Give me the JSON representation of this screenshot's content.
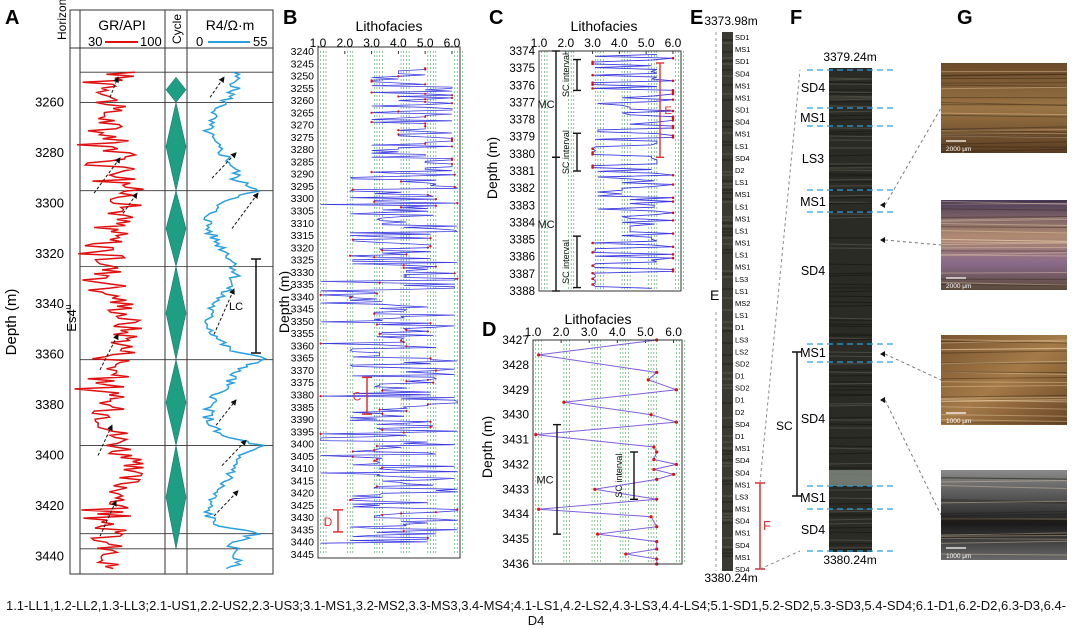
{
  "panel_letters": [
    "A",
    "B",
    "C",
    "D",
    "E",
    "F",
    "G"
  ],
  "caption": "1.1-LL1,1.2-LL2,1.3-LL3;2.1-US1,2.2-US2,2.3-US3;3.1-MS1,3.2-MS2,3.3-MS3,3.4-MS4;4.1-LS1,4.2-LS2,4.3-LS3,4.4-LS4;5.1-SD1,5.2-SD2,5.3-SD3,5.4-SD4;6.1-D1,6.2-D2,6.3-D3,6.4-D4",
  "colors": {
    "gr": "#e01010",
    "r4": "#2aa0e0",
    "cycle": "#1e9e82",
    "lith": "#3a3ae0",
    "lith_dot": "#e01010",
    "bracket_red": "#e03030",
    "guide": "#1a8a3a"
  },
  "chart_data": [
    {
      "id": "A",
      "type": "line",
      "ylabel": "Depth (m)",
      "ylim": [
        3240,
        3445
      ],
      "yticks": [
        3260,
        3280,
        3300,
        3320,
        3340,
        3360,
        3380,
        3400,
        3420,
        3440
      ],
      "headers": {
        "horizon": "Horizon",
        "gr": "GR/API",
        "cycle": "Cycle",
        "r4": "R4/Ω·m"
      },
      "gr_range_labels": [
        "30",
        "100"
      ],
      "r4_range_labels": [
        "0",
        "55"
      ],
      "horizon_label": "Es4",
      "horizon_sup": "u",
      "boundaries": [
        3248,
        3260,
        3295,
        3325,
        3362,
        3396,
        3431,
        3437
      ],
      "cycle_tips": [
        3250,
        3260,
        3295,
        3325,
        3362,
        3396,
        3437
      ],
      "lc_label": "LC",
      "lc_range": [
        3325,
        3362
      ]
    },
    {
      "id": "B",
      "type": "line",
      "title": "Lithofacies",
      "ylabel": "Depth (m)",
      "xlim": [
        1.0,
        6.3
      ],
      "xticks": [
        "1.0",
        "2.0",
        "3.0",
        "4.0",
        "5.0",
        "6.0"
      ],
      "ylim": [
        3240,
        3445
      ],
      "yticks": [
        "3240",
        "3245",
        "3250",
        "3255",
        "3260",
        "3265",
        "3270",
        "3275",
        "3280",
        "3285",
        "3290",
        "3295",
        "3300",
        "3305",
        "3310",
        "3315",
        "3320",
        "3325",
        "3330",
        "3335",
        "3340",
        "3345",
        "3350",
        "3355",
        "3360",
        "3365",
        "3370",
        "3375",
        "3380",
        "3385",
        "3390",
        "3395",
        "3400",
        "3405",
        "3410",
        "3415",
        "3420",
        "3425",
        "3430",
        "3435",
        "3440",
        "3445"
      ],
      "gridlines": [
        1.1,
        1.2,
        1.3,
        2.1,
        2.2,
        2.3,
        3.1,
        3.2,
        3.3,
        3.4,
        4.1,
        4.2,
        4.3,
        4.4,
        5.1,
        5.2,
        5.3,
        5.4,
        6.1,
        6.2,
        6.3,
        6.4
      ],
      "brackets": [
        {
          "label": "C",
          "range": [
            3373,
            3388
          ]
        },
        {
          "label": "D",
          "range": [
            3427,
            3436
          ]
        }
      ]
    },
    {
      "id": "C",
      "type": "line",
      "title": "Lithofacies",
      "ylabel": "Depth (m)",
      "xlim": [
        1.0,
        6.3
      ],
      "xticks": [
        "1.0",
        "2.0",
        "3.0",
        "4.0",
        "5.0",
        "6.0"
      ],
      "ylim": [
        3374,
        3388
      ],
      "yticks": [
        "3374",
        "3375",
        "3376",
        "3377",
        "3378",
        "3379",
        "3380",
        "3381",
        "3382",
        "3383",
        "3384",
        "3385",
        "3386",
        "3387",
        "3388"
      ],
      "annotations": [
        {
          "label": "MC",
          "range": [
            3374,
            3380.2
          ]
        },
        {
          "label": "MC",
          "range": [
            3380.2,
            3388
          ]
        },
        {
          "label": "SC interval",
          "range": [
            3374.5,
            3376.3
          ]
        },
        {
          "label": "SC interval",
          "range": [
            3378.8,
            3381
          ]
        },
        {
          "label": "SC interval",
          "range": [
            3384.8,
            3387.8
          ]
        }
      ],
      "bracket_label": "E",
      "bracket_range": [
        3374.7,
        3380.2
      ]
    },
    {
      "id": "D",
      "type": "line",
      "title": "Lithofacies",
      "ylabel": "Depth (m)",
      "xlim": [
        1.0,
        6.3
      ],
      "xticks": [
        "1.0",
        "2.0",
        "3.0",
        "4.0",
        "5.0",
        "6.0"
      ],
      "ylim": [
        3427,
        3436
      ],
      "yticks": [
        "3427",
        "3428",
        "3429",
        "3430",
        "3431",
        "3432",
        "3433",
        "3434",
        "3435",
        "3436"
      ],
      "x": [
        5.4,
        1.2,
        5.4,
        5.1,
        6.1,
        2.1,
        5.2,
        6.1,
        1.1,
        5.3,
        5.4,
        5.3,
        6.1,
        5.3,
        6.0,
        5.4,
        3.2,
        5.4,
        1.2,
        5.2,
        5.4,
        3.3,
        5.4,
        5.4,
        4.3,
        5.4,
        5.4
      ],
      "y": [
        3427.0,
        3427.6,
        3428.3,
        3428.6,
        3429.0,
        3429.5,
        3430.0,
        3430.3,
        3430.8,
        3431.3,
        3431.5,
        3431.8,
        3432.0,
        3432.2,
        3432.4,
        3432.6,
        3433.0,
        3433.4,
        3433.8,
        3434.1,
        3434.5,
        3434.8,
        3435.1,
        3435.4,
        3435.6,
        3435.8,
        3436.0
      ],
      "annotations": [
        {
          "label": "MC",
          "range": [
            3430.4,
            3434.8
          ]
        },
        {
          "label": "SC interval",
          "range": [
            3431.5,
            3433.4
          ]
        }
      ]
    },
    {
      "id": "E",
      "type": "table",
      "top_label": "3373.98m",
      "bottom_label": "3380.24m",
      "side_label": "E",
      "bracket_label": "F",
      "labels": [
        "SD1",
        "MS1",
        "SD1",
        "SD4",
        "MS1",
        "MS1",
        "SD1",
        "SD4",
        "MS1",
        "LS1",
        "SD4",
        "D2",
        "LS1",
        "MS1",
        "LS1",
        "MS1",
        "LS1",
        "MS1",
        "LS1",
        "MS1",
        "LS3",
        "LS1",
        "MS2",
        "LS1",
        "D1",
        "LS3",
        "LS2",
        "SD2",
        "D1",
        "SD2",
        "D1",
        "D2",
        "SD4",
        "D1",
        "MS1",
        "SD4",
        "SD4",
        "MS1",
        "LS3",
        "MS1",
        "SD4",
        "MS1",
        "SD4",
        "MS1",
        "SD4"
      ]
    },
    {
      "id": "F",
      "type": "table",
      "top_label": "3379.24m",
      "bottom_label": "3380.24m",
      "units": [
        "SD4",
        "MS1",
        "LS3",
        "MS1",
        "SD4",
        "MS1",
        "SD4",
        "MS1",
        "SD4"
      ],
      "sc_label": "SC"
    },
    {
      "id": "G",
      "type": "table",
      "scale_labels": [
        "2000 μm",
        "2000 μm",
        "1000 μm",
        "1000 μm"
      ]
    }
  ]
}
